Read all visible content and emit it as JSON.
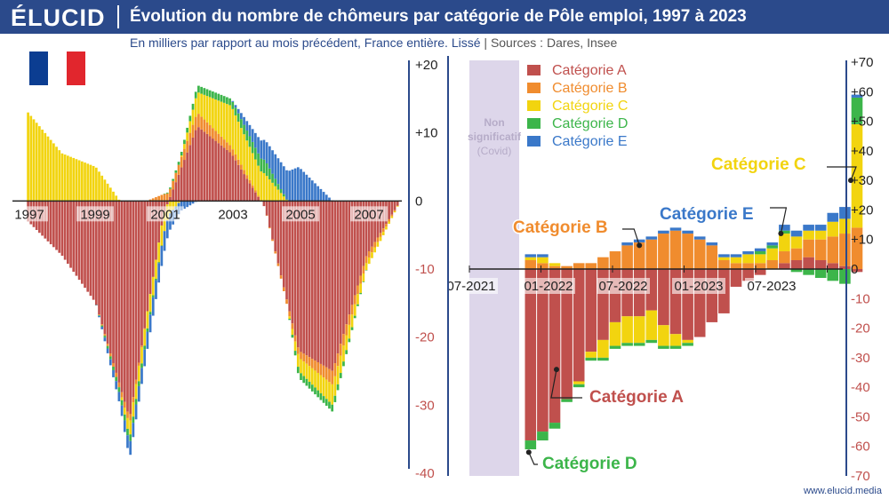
{
  "header": {
    "logo": "ÉLUCID",
    "title": "Évolution du nombre de chômeurs par catégorie de Pôle emploi, 1997 à 2023"
  },
  "subtitle": {
    "main": "En milliers par rapport au mois précédent, France entière. Lissé",
    "sep": " | ",
    "sources": "Sources : Dares, Insee"
  },
  "footer": "www.elucid.media",
  "colors": {
    "A": "#c0504d",
    "B": "#f08c2e",
    "C": "#f2d40f",
    "D": "#3cb54a",
    "E": "#3a78c9",
    "brand": "#2b4a8b",
    "covid_band": "#ddd6ea"
  },
  "flag": "france-flag",
  "chart_data": [
    {
      "type": "bar",
      "stacked": true,
      "title": "",
      "x_tick_labels": [
        "1997",
        "1999",
        "2001",
        "2003",
        "2005",
        "2007"
      ],
      "y_tick_labels": [
        "+20",
        "+10",
        "0",
        "-10",
        "-20",
        "-30",
        "-40"
      ],
      "ylim": [
        -40,
        20
      ],
      "x": [
        "1997",
        "1998",
        "1999",
        "2000",
        "2001",
        "2002",
        "2003",
        "2004",
        "2005",
        "2006",
        "2007",
        "2008"
      ],
      "series": [
        {
          "name": "Catégorie A",
          "values": [
            -3,
            -8,
            -15,
            -32,
            -2,
            11,
            7,
            -1,
            -22,
            -25,
            -8,
            0
          ]
        },
        {
          "name": "Catégorie B",
          "values": [
            0,
            0,
            0,
            -1,
            1,
            2,
            1,
            0,
            -1,
            -2,
            -1,
            0
          ]
        },
        {
          "name": "Catégorie C",
          "values": [
            13,
            7,
            5,
            -2,
            -3,
            3,
            6,
            4,
            -2,
            -3,
            -1,
            0
          ]
        },
        {
          "name": "Catégorie D",
          "values": [
            0,
            0,
            0,
            -1,
            0,
            1,
            1,
            2,
            -1,
            -1,
            0,
            0
          ]
        },
        {
          "name": "Catégorie E",
          "values": [
            0,
            0,
            0,
            -2,
            -3,
            0,
            0,
            3,
            5,
            0,
            0,
            0
          ]
        }
      ]
    },
    {
      "type": "bar",
      "stacked": true,
      "title": "",
      "x_tick_labels": [
        "07-2021",
        "01-2022",
        "07-2022",
        "01-2023",
        "07-2023"
      ],
      "y_tick_labels": [
        "+70",
        "+60",
        "+50",
        "+40",
        "+30",
        "+20",
        "+10",
        "0",
        "-10",
        "-20",
        "-30",
        "-40",
        "-50",
        "-60",
        "-70"
      ],
      "ylim": [
        -70,
        70
      ],
      "covid_band_label": [
        "Non",
        "significatif",
        "(Covid)"
      ],
      "legend": [
        "Catégorie A",
        "Catégorie B",
        "Catégorie C",
        "Catégorie D",
        "Catégorie E"
      ],
      "legend_position": "top-left",
      "annotations": [
        "Catégorie C",
        "Catégorie B",
        "Catégorie E",
        "Catégorie A",
        "Catégorie D"
      ],
      "x": [
        "09-2021",
        "10-2021",
        "11-2021",
        "12-2021",
        "01-2022",
        "02-2022",
        "03-2022",
        "04-2022",
        "05-2022",
        "06-2022",
        "07-2022",
        "08-2022",
        "09-2022",
        "10-2022",
        "11-2022",
        "12-2022",
        "01-2023",
        "02-2023",
        "03-2023",
        "04-2023",
        "05-2023",
        "06-2023",
        "07-2023",
        "08-2023",
        "09-2023",
        "10-2023",
        "11-2023",
        "12-2023"
      ],
      "series": [
        {
          "name": "Catégorie A",
          "values": [
            -58,
            -55,
            -52,
            -44,
            -38,
            -28,
            -24,
            -18,
            -16,
            -16,
            -14,
            -19,
            -22,
            -24,
            -23,
            -18,
            -15,
            -6,
            -4,
            -2,
            0,
            2,
            3,
            4,
            3,
            2,
            1,
            -1
          ]
        },
        {
          "name": "Catégorie B",
          "values": [
            3,
            2,
            1,
            1,
            2,
            2,
            4,
            6,
            8,
            9,
            10,
            12,
            13,
            12,
            10,
            8,
            3,
            2,
            2,
            2,
            3,
            4,
            4,
            6,
            7,
            9,
            11,
            14
          ]
        },
        {
          "name": "Catégorie C",
          "values": [
            1,
            2,
            1,
            0,
            -1,
            -2,
            -6,
            -8,
            -9,
            -9,
            -10,
            -7,
            -4,
            -1,
            0,
            0,
            1,
            2,
            3,
            3,
            4,
            6,
            4,
            3,
            3,
            5,
            5,
            35
          ]
        },
        {
          "name": "Catégorie D",
          "values": [
            -3,
            -3,
            -2,
            -1,
            -1,
            -1,
            -1,
            -1,
            -1,
            -1,
            -1,
            -1,
            -1,
            -1,
            0,
            0,
            0,
            0,
            0,
            1,
            1,
            1,
            -1,
            -2,
            -3,
            -4,
            -5,
            9
          ]
        },
        {
          "name": "Catégorie E",
          "values": [
            1,
            1,
            0,
            0,
            0,
            0,
            0,
            0,
            1,
            1,
            1,
            1,
            1,
            1,
            1,
            1,
            1,
            1,
            1,
            1,
            1,
            2,
            2,
            2,
            2,
            3,
            4,
            1
          ]
        }
      ]
    }
  ]
}
